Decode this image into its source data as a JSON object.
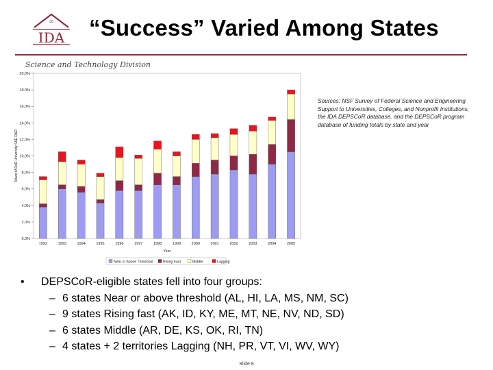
{
  "logo": {
    "text": "IDA"
  },
  "header": {
    "title": "“Success” Varied Among States",
    "division": "Science and Technology Division"
  },
  "sources": "Sources: NSF Survey of Federal Science and Engineering Support to Universities, Colleges, and Nonprofit Institutions, the IDA DEPSCoR database, and the DEPSCoR program database of funding totals by state and year",
  "colors": {
    "near": "#9d9cf2",
    "rising": "#8e2846",
    "middle": "#ffffc8",
    "lagging": "#e8141e",
    "accent": "#8b2a40"
  },
  "chart_data": {
    "type": "bar",
    "stacked": true,
    "categories": [
      "1992",
      "1993",
      "1994",
      "1995",
      "1996",
      "1997",
      "1998",
      "1999",
      "2000",
      "2001",
      "2002",
      "2003",
      "2004",
      "2005"
    ],
    "series": [
      {
        "name": "Near or Above Threshold",
        "values": [
          3.8,
          6.0,
          5.6,
          4.3,
          5.8,
          5.8,
          6.5,
          6.5,
          7.5,
          7.8,
          8.3,
          7.8,
          9.0,
          10.5
        ]
      },
      {
        "name": "Rising Fast",
        "values": [
          0.4,
          0.5,
          0.7,
          0.4,
          1.2,
          0.7,
          1.4,
          1.0,
          1.6,
          1.7,
          1.7,
          2.4,
          2.4,
          3.9
        ]
      },
      {
        "name": "Middle",
        "values": [
          2.9,
          2.8,
          2.7,
          2.8,
          2.8,
          3.2,
          2.9,
          2.5,
          2.9,
          2.7,
          2.6,
          2.8,
          2.9,
          3.1
        ]
      },
      {
        "name": "Lagging",
        "values": [
          0.4,
          1.2,
          0.5,
          0.4,
          1.3,
          0.4,
          1.0,
          0.5,
          0.6,
          0.5,
          0.7,
          0.7,
          0.4,
          0.5
        ]
      }
    ],
    "title": "",
    "xlabel": "Year",
    "ylabel": "Share of DoD University S&E R&D",
    "ylim": [
      0,
      20
    ],
    "yticks": [
      "0.0%",
      "2.0%",
      "4.0%",
      "6.0%",
      "8.0%",
      "10.0%",
      "12.0%",
      "14.0%",
      "16.0%",
      "18.0%",
      "20.0%"
    ],
    "grid": false,
    "legend": "bottom"
  },
  "bullets": {
    "main": "DEPSCoR-eligible states fell into four groups:",
    "subs": [
      "6 states Near or above threshold (AL, HI, LA, MS, NM, SC)",
      "9 states Rising fast (AK, ID, KY, ME, MT, NE, NV, ND, SD)",
      "6 states Middle (AR, DE, KS, OK, RI, TN)",
      "4 states + 2 territories Lagging (NH, PR, VT, VI, WV, WY)"
    ]
  },
  "bullet_glyph": "•",
  "dash_glyph": "–",
  "footer": {
    "slide": "Slide 8"
  }
}
